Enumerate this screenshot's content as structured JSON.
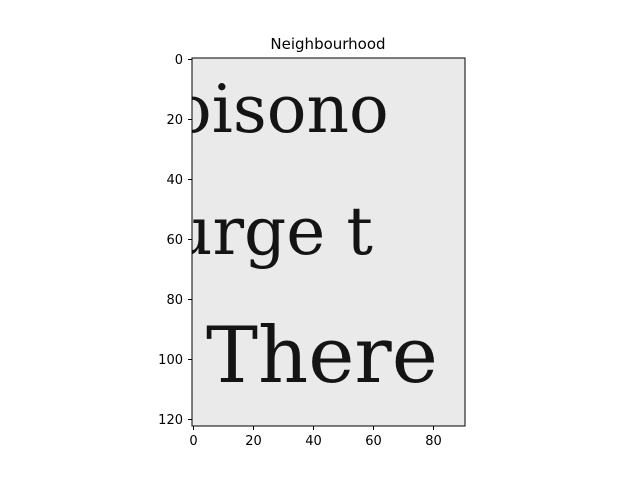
{
  "figure": {
    "title": "Neighbourhood",
    "background_color": "#ffffff"
  },
  "image_panel": {
    "description_colors": {
      "paper": "#ececec",
      "ink": "#141414"
    },
    "text_lines": [
      "oisono",
      "urge t",
      "There"
    ],
    "x_range": [
      0,
      91
    ],
    "y_range": [
      0,
      123
    ],
    "y_axis_inverted": true
  },
  "axes": {
    "x_ticks": [
      "0",
      "20",
      "40",
      "60",
      "80"
    ],
    "y_ticks": [
      "0",
      "20",
      "40",
      "60",
      "80",
      "100",
      "120"
    ]
  }
}
